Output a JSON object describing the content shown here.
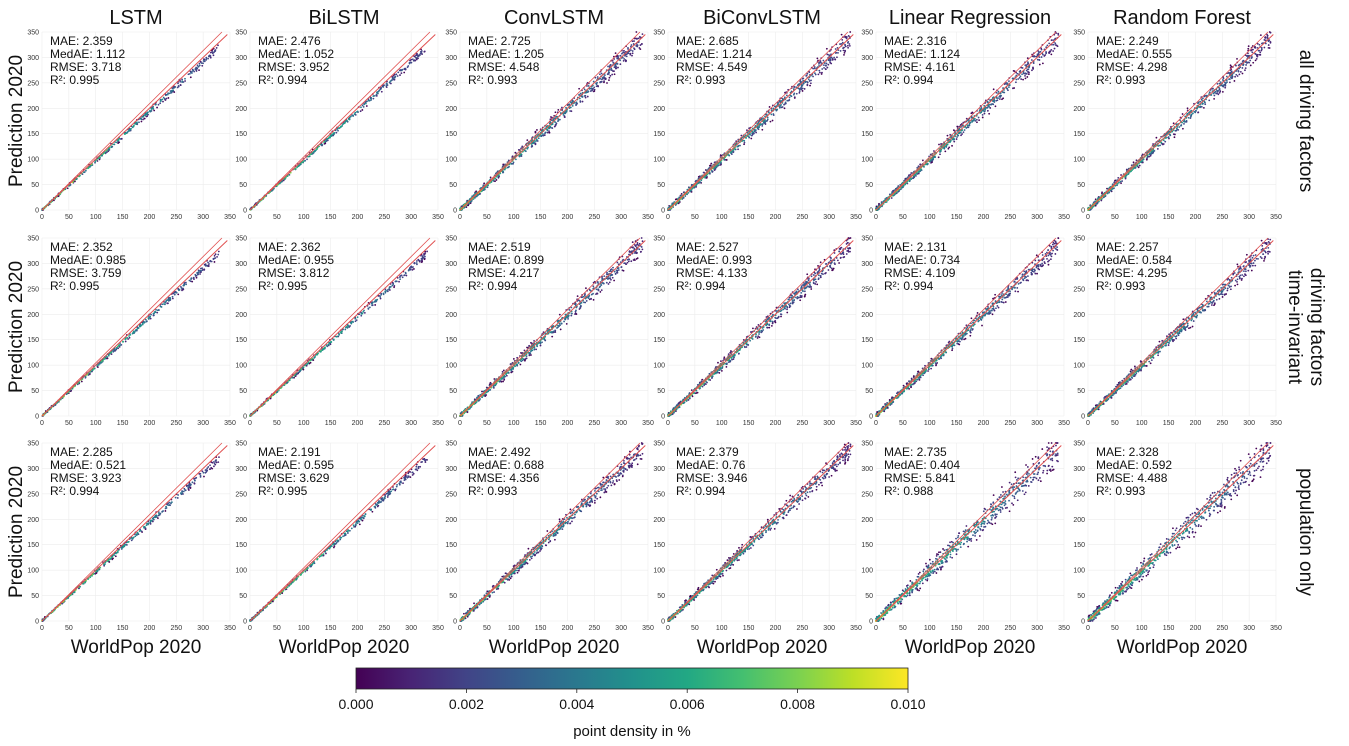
{
  "chart_data": {
    "type": "scatter",
    "x_title": "WorldPop 2020",
    "y_title": "Prediction 2020",
    "xlim": [
      0,
      350
    ],
    "ylim": [
      0,
      350
    ],
    "x_ticks": [
      0,
      50,
      100,
      150,
      200,
      250,
      300,
      350
    ],
    "y_ticks": [
      0,
      50,
      100,
      150,
      200,
      250,
      300,
      350
    ],
    "grid": true,
    "models": [
      "LSTM",
      "BiLSTM",
      "ConvLSTM",
      "BiConvLSTM",
      "Linear Regression",
      "Random Forest"
    ],
    "rows": [
      {
        "label_lines": [
          "all driving factors"
        ]
      },
      {
        "label_lines": [
          "time-invariant",
          "driving factors"
        ]
      },
      {
        "label_lines": [
          "population only"
        ]
      }
    ],
    "metric_names": [
      "MAE",
      "MedAE",
      "RMSE",
      "R²"
    ],
    "metrics": [
      [
        [
          "2.359",
          "1.112",
          "3.718",
          "0.995"
        ],
        [
          "2.476",
          "1.052",
          "3.952",
          "0.994"
        ],
        [
          "2.725",
          "1.205",
          "4.548",
          "0.993"
        ],
        [
          "2.685",
          "1.214",
          "4.549",
          "0.993"
        ],
        [
          "2.316",
          "1.124",
          "4.161",
          "0.994"
        ],
        [
          "2.249",
          "0.555",
          "4.298",
          "0.993"
        ]
      ],
      [
        [
          "2.352",
          "0.985",
          "3.759",
          "0.995"
        ],
        [
          "2.362",
          "0.955",
          "3.812",
          "0.995"
        ],
        [
          "2.519",
          "0.899",
          "4.217",
          "0.994"
        ],
        [
          "2.527",
          "0.993",
          "4.133",
          "0.994"
        ],
        [
          "2.131",
          "0.734",
          "4.109",
          "0.994"
        ],
        [
          "2.257",
          "0.584",
          "4.295",
          "0.993"
        ]
      ],
      [
        [
          "2.285",
          "0.521",
          "3.923",
          "0.994"
        ],
        [
          "2.191",
          "0.595",
          "3.629",
          "0.995"
        ],
        [
          "2.492",
          "0.688",
          "4.356",
          "0.993"
        ],
        [
          "2.379",
          "0.76",
          "3.946",
          "0.994"
        ],
        [
          "2.735",
          "0.404",
          "5.841",
          "0.988"
        ],
        [
          "2.328",
          "0.592",
          "4.488",
          "0.993"
        ]
      ]
    ],
    "colorbar": {
      "label": "point density in %",
      "min": 0.0,
      "max": 0.01,
      "ticks": [
        "0.000",
        "0.002",
        "0.004",
        "0.006",
        "0.008",
        "0.010"
      ],
      "colormap": "viridis"
    },
    "identity_line_color": "#e05050"
  }
}
